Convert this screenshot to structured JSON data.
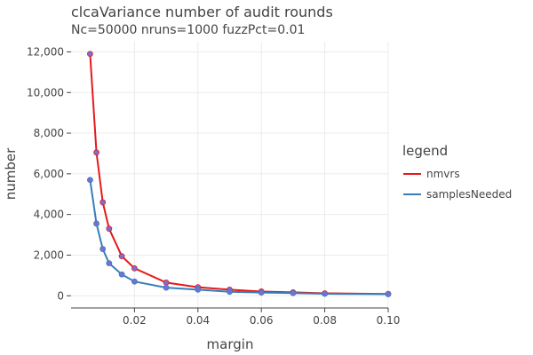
{
  "chart_data": {
    "type": "line",
    "title": "clcaVariance number of audit rounds",
    "subtitle": "Nc=50000 nruns=1000 fuzzPct=0.01",
    "xlabel": "margin",
    "ylabel": "number",
    "xlim": [
      0.0,
      0.1
    ],
    "ylim": [
      -600,
      12500
    ],
    "xticks": [
      0.02,
      0.04,
      0.06,
      0.08,
      0.1
    ],
    "xtick_labels": [
      "0.02",
      "0.04",
      "0.06",
      "0.08",
      "0.10"
    ],
    "yticks": [
      0,
      2000,
      4000,
      6000,
      8000,
      10000,
      12000
    ],
    "ytick_labels": [
      "0",
      "2,000",
      "4,000",
      "6,000",
      "8,000",
      "10,000",
      "12,000"
    ],
    "grid": true,
    "legend_title": "legend",
    "legend_position": "right",
    "x": [
      0.006,
      0.008,
      0.01,
      0.012,
      0.016,
      0.02,
      0.03,
      0.04,
      0.05,
      0.06,
      0.07,
      0.08,
      0.1
    ],
    "series": [
      {
        "name": "nmvrs",
        "color": "#e41a1c",
        "values": [
          11900,
          7050,
          4600,
          3300,
          1950,
          1350,
          650,
          420,
          300,
          210,
          170,
          120,
          90
        ]
      },
      {
        "name": "samplesNeeded",
        "color": "#377eb8",
        "values": [
          5700,
          3550,
          2300,
          1600,
          1050,
          700,
          400,
          300,
          200,
          160,
          130,
          100,
          80
        ]
      }
    ],
    "marker_color": "#7570d8"
  }
}
